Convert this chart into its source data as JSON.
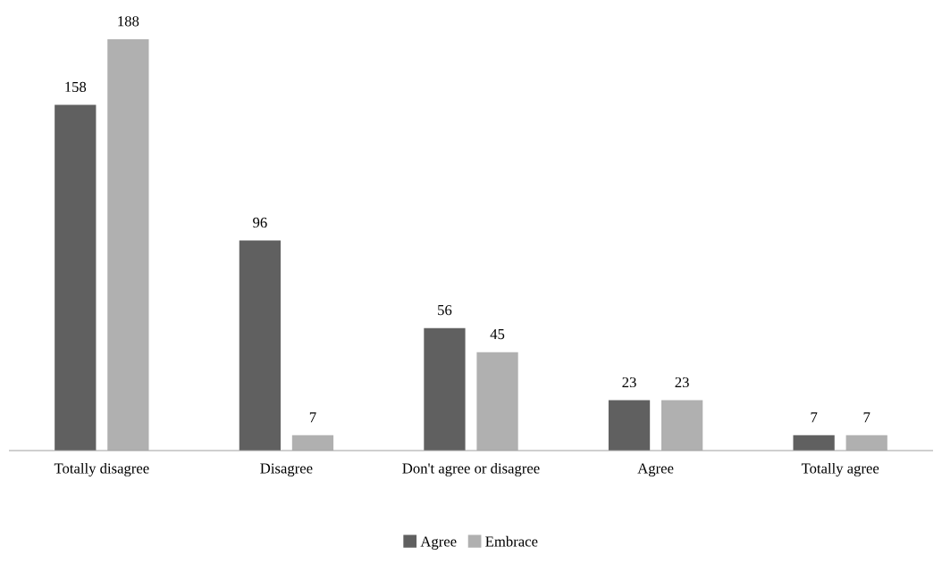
{
  "chart_data": {
    "type": "bar",
    "categories": [
      "Totally disagree",
      "Disagree",
      "Don't agree or disagree",
      "Agree",
      "Totally agree"
    ],
    "series": [
      {
        "name": "Agree",
        "color": "#606060",
        "values": [
          158,
          96,
          56,
          23,
          7
        ]
      },
      {
        "name": "Embrace",
        "color": "#b0b0b0",
        "values": [
          188,
          7,
          45,
          23,
          7
        ]
      }
    ],
    "data_labels": true,
    "legend": "bottom",
    "grid": false
  }
}
